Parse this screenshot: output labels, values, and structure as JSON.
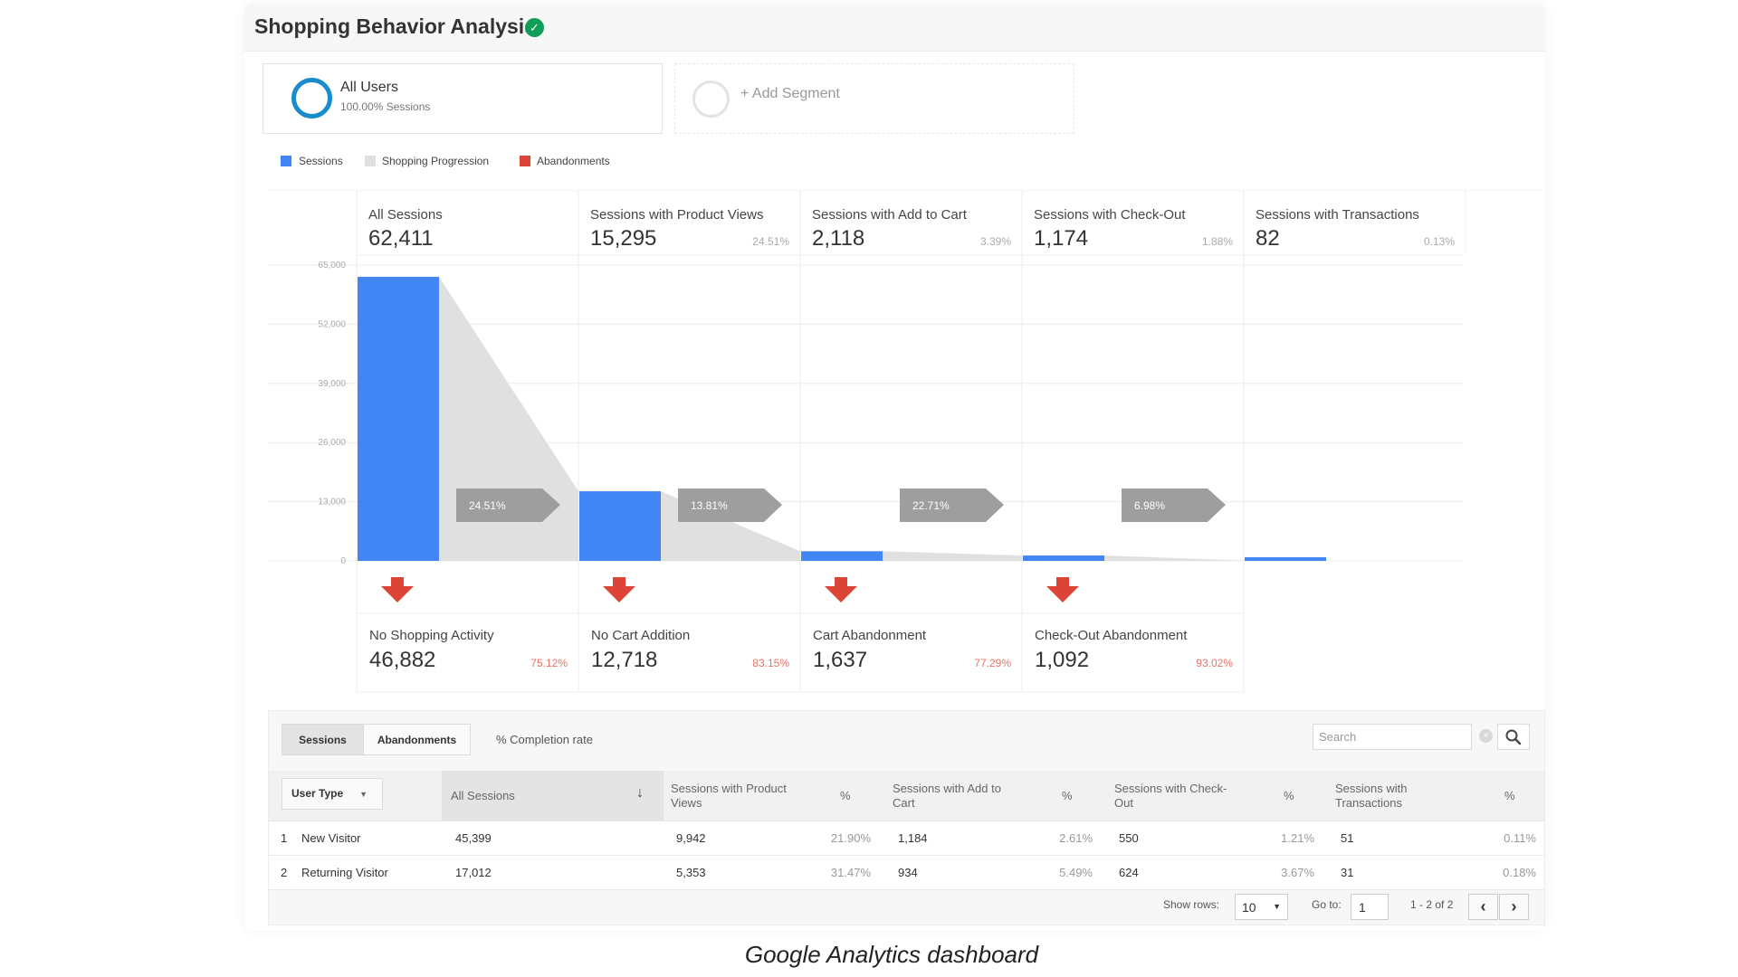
{
  "header": {
    "title": "Shopping Behavior Analysis",
    "verified_icon": "check-badge-icon"
  },
  "segments": [
    {
      "name": "All Users",
      "subtitle": "100.00% Sessions",
      "ring_color": "#1a8ccc"
    },
    {
      "name": "+ Add Segment"
    }
  ],
  "legend": [
    {
      "label": "Sessions",
      "color": "#4285f4"
    },
    {
      "label": "Shopping Progression",
      "color": "#e0e0e0"
    },
    {
      "label": "Abandonments",
      "color": "#db4437"
    }
  ],
  "chart_data": {
    "type": "bar",
    "yticks": [
      "65,000",
      "52,000",
      "39,000",
      "26,000",
      "13,000",
      "0"
    ],
    "ylim": [
      0,
      65000
    ],
    "stages": [
      {
        "label": "All Sessions",
        "value_text": "62,411",
        "value": 62411,
        "pct": ""
      },
      {
        "label": "Sessions with Product Views",
        "value_text": "15,295",
        "value": 15295,
        "pct": "24.51%"
      },
      {
        "label": "Sessions with Add to Cart",
        "value_text": "2,118",
        "value": 2118,
        "pct": "3.39%"
      },
      {
        "label": "Sessions with Check-Out",
        "value_text": "1,174",
        "value": 1174,
        "pct": "1.88%"
      },
      {
        "label": "Sessions with Transactions",
        "value_text": "82",
        "value": 82,
        "pct": "0.13%"
      }
    ],
    "progression": [
      "24.51%",
      "13.81%",
      "22.71%",
      "6.98%"
    ],
    "abandonments": [
      {
        "label": "No Shopping Activity",
        "value_text": "46,882",
        "pct": "75.12%"
      },
      {
        "label": "No Cart Addition",
        "value_text": "12,718",
        "pct": "83.15%"
      },
      {
        "label": "Cart Abandonment",
        "value_text": "1,637",
        "pct": "77.29%"
      },
      {
        "label": "Check-Out Abandonment",
        "value_text": "1,092",
        "pct": "93.02%"
      }
    ],
    "colors": {
      "sessions": "#4285f4",
      "progression": "#e0e0e0",
      "arrow": "#9e9e9e",
      "abandon": "#db4437",
      "abandon_pct": "#e57368"
    }
  },
  "table": {
    "tabs": [
      "Sessions",
      "Abandonments"
    ],
    "completion_label": "% Completion rate",
    "search_placeholder": "Search",
    "dimension": "User Type",
    "headers": {
      "all_sessions": "All Sessions",
      "product_views": "Sessions with Product Views",
      "pct": "%",
      "add_to_cart": "Sessions with Add to Cart",
      "checkout": "Sessions with Check-Out",
      "transactions": "Sessions with Transactions"
    },
    "rows": [
      {
        "index": "1",
        "user_type": "New Visitor",
        "all_sessions": "45,399",
        "product_views": "9,942",
        "product_views_pct": "21.90%",
        "add_to_cart": "1,184",
        "add_to_cart_pct": "2.61%",
        "checkout": "550",
        "checkout_pct": "1.21%",
        "transactions": "51",
        "transactions_pct": "0.11%"
      },
      {
        "index": "2",
        "user_type": "Returning Visitor",
        "all_sessions": "17,012",
        "product_views": "5,353",
        "product_views_pct": "31.47%",
        "add_to_cart": "934",
        "add_to_cart_pct": "5.49%",
        "checkout": "624",
        "checkout_pct": "3.67%",
        "transactions": "31",
        "transactions_pct": "0.18%"
      }
    ],
    "footer": {
      "show_rows_label": "Show rows:",
      "show_rows_value": "10",
      "goto_label": "Go to:",
      "goto_value": "1",
      "range": "1 - 2 of 2"
    }
  },
  "caption": "Google Analytics dashboard"
}
